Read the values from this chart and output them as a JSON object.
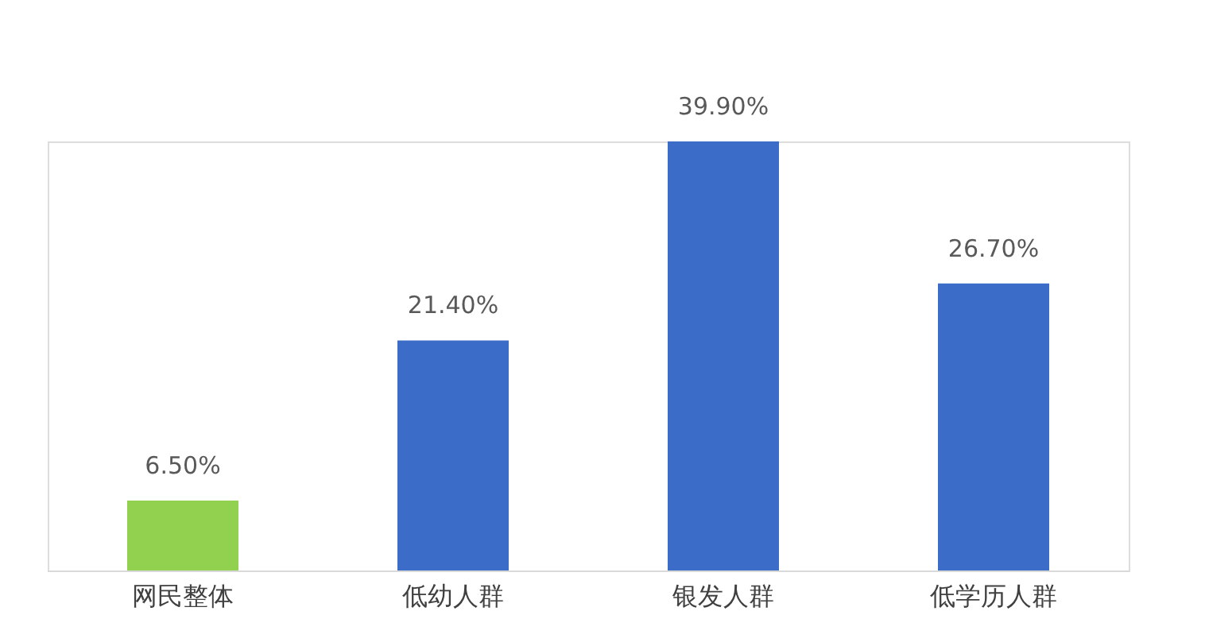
{
  "chart_data": {
    "type": "bar",
    "categories": [
      "网民整体",
      "低幼人群",
      "银发人群",
      "低学历人群"
    ],
    "values": [
      6.5,
      21.4,
      39.9,
      26.7
    ],
    "value_labels": [
      "6.50%",
      "21.40%",
      "39.90%",
      "26.70%"
    ],
    "colors": [
      "#92d050",
      "#3a6cc8",
      "#3a6cc8",
      "#3a6cc8"
    ],
    "grid": false
  }
}
